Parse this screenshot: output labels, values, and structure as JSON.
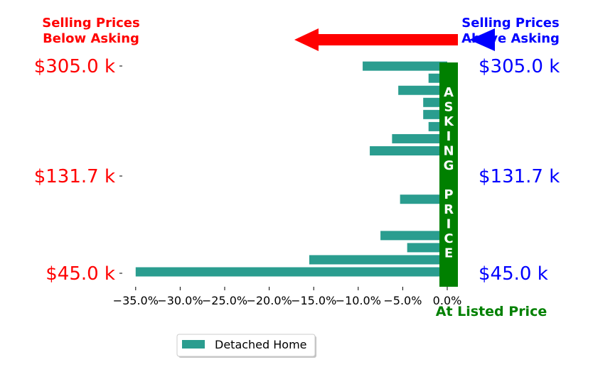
{
  "chart_data": {
    "type": "bar",
    "orientation": "horizontal",
    "annotations": {
      "below_asking": "Selling Prices\nBelow Asking",
      "above_asking": "Selling Prices\nAbove Asking",
      "at_listed": "At Listed Price",
      "asking_price_letters": [
        "A",
        "S",
        "K",
        "I",
        "N",
        "G",
        "",
        "P",
        "R",
        "I",
        "C",
        "E"
      ]
    },
    "left_tick_labels": [
      "$305.0 k",
      "$131.7 k",
      "$45.0 k"
    ],
    "right_tick_labels": [
      "$305.0 k",
      "$131.7 k",
      "$45.0 k"
    ],
    "x_tick_labels": [
      "−35.0%",
      "−30.0%",
      "−25.0%",
      "−20.0%",
      "−15.0%",
      "−10.0%",
      "−5.0%",
      "0.0%"
    ],
    "xlim": [
      -0.36,
      0.03
    ],
    "x_ticks": [
      -0.35,
      -0.3,
      -0.25,
      -0.2,
      -0.15,
      -0.1,
      -0.05,
      0.0
    ],
    "series": [
      {
        "name": "Detached Home",
        "values": [
          -0.35,
          -0.155,
          -0.045,
          -0.075,
          0.0,
          0.0,
          -0.053,
          0.0,
          0.0,
          0.0,
          -0.087,
          -0.062,
          -0.021,
          -0.027,
          -0.027,
          -0.055,
          -0.021,
          -0.095
        ]
      }
    ],
    "grid": false,
    "legend_position": "bottom-center",
    "colors": {
      "bar": "#2a9d8f",
      "asking_band": "#008000",
      "below": "#ff0000",
      "above": "#0000ff",
      "at_listed": "#008000"
    }
  }
}
